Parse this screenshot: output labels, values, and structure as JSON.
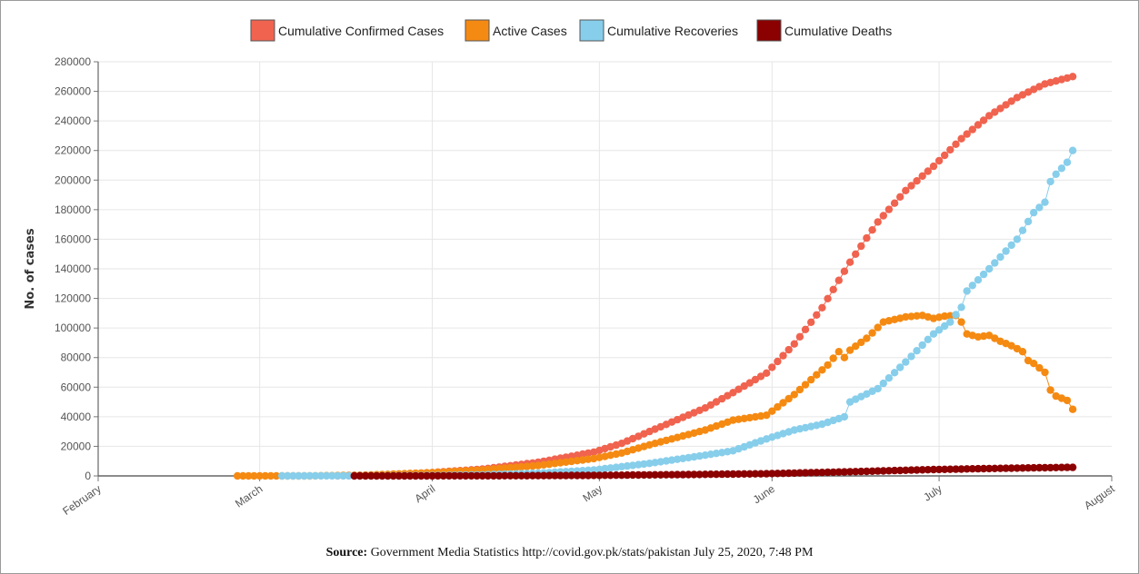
{
  "caption": {
    "label": "Source:",
    "text": "Government Media Statistics http://covid.gov.pk/stats/pakistan July 25, 2020, 7:48 PM"
  },
  "chart_data": {
    "type": "scatter",
    "title": "",
    "xlabel": "",
    "ylabel": "No. of cases",
    "x_range": [
      "2020-02-01",
      "2020-08-01"
    ],
    "x_ticks": [
      {
        "label": "February",
        "date": "2020-02-01"
      },
      {
        "label": "March",
        "date": "2020-03-01"
      },
      {
        "label": "April",
        "date": "2020-04-01"
      },
      {
        "label": "May",
        "date": "2020-05-01"
      },
      {
        "label": "June",
        "date": "2020-06-01"
      },
      {
        "label": "July",
        "date": "2020-07-01"
      },
      {
        "label": "August",
        "date": "2020-08-01"
      }
    ],
    "ylim": [
      0,
      280000
    ],
    "y_ticks": [
      "0",
      "20000",
      "40000",
      "60000",
      "80000",
      "100000",
      "120000",
      "140000",
      "160000",
      "180000",
      "200000",
      "220000",
      "240000",
      "260000",
      "280000"
    ],
    "grid": true,
    "legend_position": "top-center",
    "series": [
      {
        "name": "Cumulative Confirmed Cases",
        "color": "#f0634f",
        "start": "2020-03-15",
        "end": "2020-07-25",
        "points": [
          [
            "2020-03-15",
            50
          ],
          [
            "2020-03-25",
            1000
          ],
          [
            "2020-04-01",
            2300
          ],
          [
            "2020-04-10",
            4600
          ],
          [
            "2020-04-20",
            9200
          ],
          [
            "2020-04-30",
            16100
          ],
          [
            "2020-05-05",
            22000
          ],
          [
            "2020-05-10",
            30000
          ],
          [
            "2020-05-15",
            38000
          ],
          [
            "2020-05-20",
            45900
          ],
          [
            "2020-05-25",
            56300
          ],
          [
            "2020-05-31",
            69500
          ],
          [
            "2020-06-05",
            89200
          ],
          [
            "2020-06-10",
            113700
          ],
          [
            "2020-06-15",
            144500
          ],
          [
            "2020-06-20",
            171700
          ],
          [
            "2020-06-25",
            192900
          ],
          [
            "2020-06-30",
            209300
          ],
          [
            "2020-07-05",
            228000
          ],
          [
            "2020-07-10",
            243500
          ],
          [
            "2020-07-15",
            255800
          ],
          [
            "2020-07-20",
            265000
          ],
          [
            "2020-07-25",
            270000
          ]
        ]
      },
      {
        "name": "Active Cases",
        "color": "#f58a12",
        "start": "2020-02-26",
        "end": "2020-07-25",
        "points": [
          [
            "2020-02-26",
            2
          ],
          [
            "2020-03-10",
            20
          ],
          [
            "2020-03-20",
            500
          ],
          [
            "2020-04-01",
            2200
          ],
          [
            "2020-04-10",
            4000
          ],
          [
            "2020-04-20",
            7000
          ],
          [
            "2020-04-30",
            11700
          ],
          [
            "2020-05-05",
            15500
          ],
          [
            "2020-05-10",
            21000
          ],
          [
            "2020-05-15",
            26000
          ],
          [
            "2020-05-20",
            31000
          ],
          [
            "2020-05-25",
            37700
          ],
          [
            "2020-05-31",
            41000
          ],
          [
            "2020-06-05",
            55000
          ],
          [
            "2020-06-08",
            65000
          ],
          [
            "2020-06-11",
            75000
          ],
          [
            "2020-06-13",
            84000
          ],
          [
            "2020-06-14",
            80000
          ],
          [
            "2020-06-15",
            85000
          ],
          [
            "2020-06-18",
            93000
          ],
          [
            "2020-06-21",
            104000
          ],
          [
            "2020-06-25",
            107500
          ],
          [
            "2020-06-28",
            108500
          ],
          [
            "2020-06-30",
            106500
          ],
          [
            "2020-07-02",
            108000
          ],
          [
            "2020-07-04",
            108500
          ],
          [
            "2020-07-05",
            104000
          ],
          [
            "2020-07-06",
            96000
          ],
          [
            "2020-07-08",
            94000
          ],
          [
            "2020-07-10",
            95000
          ],
          [
            "2020-07-12",
            91000
          ],
          [
            "2020-07-14",
            88000
          ],
          [
            "2020-07-16",
            84000
          ],
          [
            "2020-07-17",
            78000
          ],
          [
            "2020-07-18",
            76000
          ],
          [
            "2020-07-20",
            70000
          ],
          [
            "2020-07-21",
            58000
          ],
          [
            "2020-07-22",
            54000
          ],
          [
            "2020-07-24",
            51000
          ],
          [
            "2020-07-25",
            45000
          ]
        ]
      },
      {
        "name": "Cumulative Recoveries",
        "color": "#87ceeb",
        "start": "2020-03-05",
        "end": "2020-07-25",
        "points": [
          [
            "2020-03-05",
            0
          ],
          [
            "2020-03-20",
            100
          ],
          [
            "2020-04-01",
            300
          ],
          [
            "2020-04-10",
            700
          ],
          [
            "2020-04-20",
            1800
          ],
          [
            "2020-04-30",
            4000
          ],
          [
            "2020-05-10",
            8500
          ],
          [
            "2020-05-20",
            14000
          ],
          [
            "2020-05-25",
            17000
          ],
          [
            "2020-05-31",
            25000
          ],
          [
            "2020-06-05",
            31000
          ],
          [
            "2020-06-10",
            35000
          ],
          [
            "2020-06-14",
            40000
          ],
          [
            "2020-06-15",
            50000
          ],
          [
            "2020-06-20",
            59000
          ],
          [
            "2020-06-25",
            77000
          ],
          [
            "2020-06-30",
            96000
          ],
          [
            "2020-07-03",
            104000
          ],
          [
            "2020-07-05",
            114000
          ],
          [
            "2020-07-06",
            125000
          ],
          [
            "2020-07-10",
            140000
          ],
          [
            "2020-07-15",
            160000
          ],
          [
            "2020-07-18",
            178000
          ],
          [
            "2020-07-20",
            185000
          ],
          [
            "2020-07-21",
            199000
          ],
          [
            "2020-07-22",
            204000
          ],
          [
            "2020-07-24",
            212000
          ],
          [
            "2020-07-25",
            220000
          ]
        ]
      },
      {
        "name": "Cumulative Deaths",
        "color": "#8b0000",
        "start": "2020-03-18",
        "end": "2020-07-25",
        "points": [
          [
            "2020-03-18",
            0
          ],
          [
            "2020-04-01",
            30
          ],
          [
            "2020-04-15",
            100
          ],
          [
            "2020-04-30",
            350
          ],
          [
            "2020-05-15",
            850
          ],
          [
            "2020-05-31",
            1480
          ],
          [
            "2020-06-15",
            2800
          ],
          [
            "2020-06-30",
            4300
          ],
          [
            "2020-07-15",
            5300
          ],
          [
            "2020-07-25",
            5800
          ]
        ]
      }
    ]
  }
}
